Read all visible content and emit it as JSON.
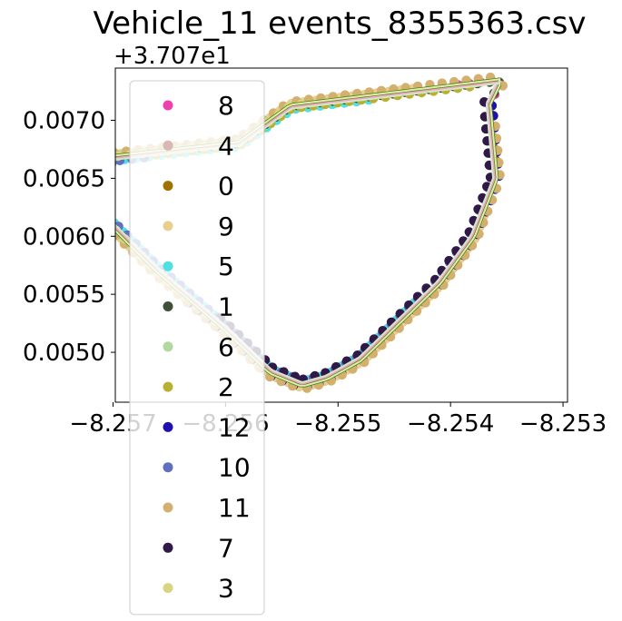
{
  "chart_data": {
    "type": "scatter",
    "title": "Vehicle_11 events_8355363.csv",
    "xlabel": "",
    "ylabel": "",
    "y_offset_label": "+3.707e1",
    "y_offset": 37.07,
    "xlim": [
      -8.25698,
      -8.25296
    ],
    "ylim": [
      0.00457,
      0.00745
    ],
    "x_ticks": [
      -8.257,
      -8.256,
      -8.255,
      -8.254,
      -8.253
    ],
    "x_tick_labels": [
      "−8.257",
      "−8.256",
      "−8.255",
      "−8.254",
      "−8.253"
    ],
    "y_ticks": [
      0.005,
      0.0055,
      0.006,
      0.0065,
      0.007
    ],
    "y_tick_labels": [
      "0.0050",
      "0.0055",
      "0.0060",
      "0.0065",
      "0.0070"
    ],
    "grid": false,
    "legend_position": "upper-left",
    "route": [
      [
        -8.25366,
        0.00714
      ],
      [
        -8.25356,
        0.00734
      ],
      [
        -8.25542,
        0.00712
      ],
      [
        -8.25588,
        0.0068
      ],
      [
        -8.257,
        0.00668
      ],
      [
        -8.25717,
        0.00652
      ],
      [
        -8.25722,
        0.0063
      ],
      [
        -8.2566,
        0.0057
      ],
      [
        -8.256,
        0.0052
      ],
      [
        -8.2556,
        0.00483
      ],
      [
        -8.25532,
        0.00472
      ],
      [
        -8.2551,
        0.00478
      ],
      [
        -8.2548,
        0.00494
      ],
      [
        -8.2541,
        0.0056
      ],
      [
        -8.2538,
        0.006
      ],
      [
        -8.2536,
        0.0065
      ],
      [
        -8.25366,
        0.00714
      ]
    ],
    "series": [
      {
        "name": "8",
        "color": "#f040b0",
        "seg": [
          0.0,
          0.06
        ],
        "jitter": 1.3
      },
      {
        "name": "4",
        "color": "#d8b8b0",
        "seg": [
          0.18,
          0.55
        ],
        "jitter": -1.6
      },
      {
        "name": "0",
        "color": "#a07000",
        "seg": [
          0.95,
          1.0
        ],
        "jitter": 2.0
      },
      {
        "name": "9",
        "color": "#e8cf90",
        "seg": [
          0.1,
          0.9
        ],
        "jitter": 3.2
      },
      {
        "name": "5",
        "color": "#50e0e0",
        "seg": [
          0.14,
          0.8
        ],
        "jitter": -3.5
      },
      {
        "name": "1",
        "color": "#405038",
        "seg": [
          0.0,
          0.3
        ],
        "jitter": 0.0
      },
      {
        "name": "6",
        "color": "#b0d8a0",
        "seg": [
          0.25,
          0.55
        ],
        "jitter": 1.8
      },
      {
        "name": "2",
        "color": "#b8b030",
        "seg": [
          0.05,
          0.35
        ],
        "jitter": -2.4
      },
      {
        "name": "12",
        "color": "#2010b0",
        "seg": [
          0.55,
          1.0
        ],
        "jitter": 4.0
      },
      {
        "name": "10",
        "color": "#6070c0",
        "seg": [
          0.35,
          1.0
        ],
        "jitter": -4.2
      },
      {
        "name": "11",
        "color": "#d4b070",
        "seg": [
          0.02,
          0.98
        ],
        "jitter": 5.2
      },
      {
        "name": "7",
        "color": "#301848",
        "seg": [
          0.58,
          1.0
        ],
        "jitter": -5.6
      },
      {
        "name": "3",
        "color": "#d8d480",
        "seg": [
          0.2,
          0.6
        ],
        "jitter": 0.8
      }
    ],
    "path_lines": [
      {
        "color": "#4a9a00",
        "jitter": 0.0
      },
      {
        "color": "#3d8f00",
        "jitter": 2.6
      },
      {
        "color": "#f2a0cf",
        "jitter": -1.0
      },
      {
        "color": "#ece4bc",
        "jitter": 1.8
      },
      {
        "color": "#d2e8c2",
        "jitter": -2.6
      }
    ]
  }
}
